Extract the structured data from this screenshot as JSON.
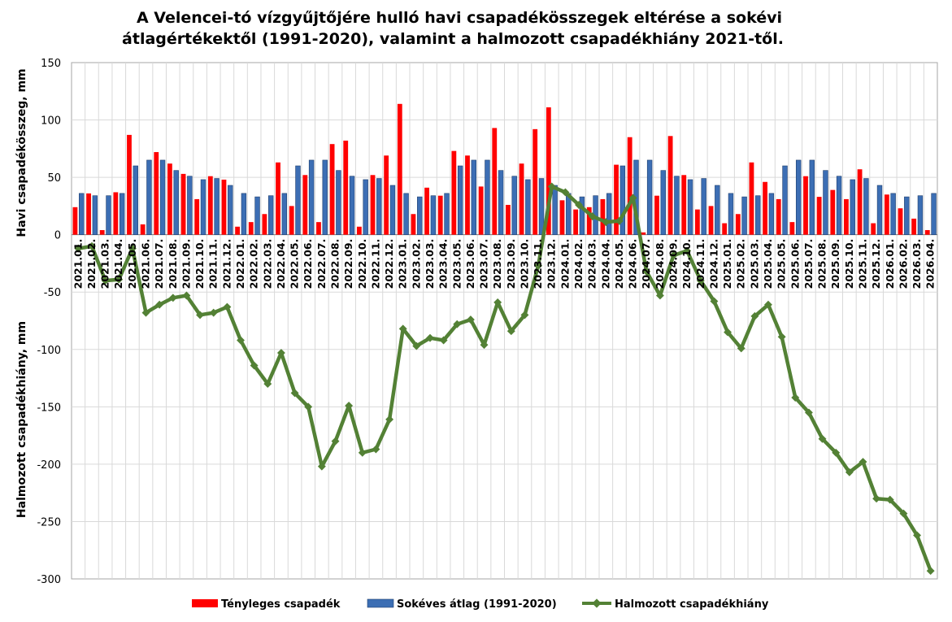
{
  "chart_data": {
    "type": "bar+line",
    "title_line1": "A Velencei-tó vízgyűjtőjére hulló havi csapadékösszegek eltérése a sokévi",
    "title_line2": "átlagértékektől (1991-2020), valamint a halmozott csapadékhiány 2021-től.",
    "ylabel_upper": "Havi csapadékösszeg, mm",
    "ylabel_lower": "Halmozott csapadékhiány, mm",
    "ylim": [
      -300,
      150
    ],
    "yticks": [
      "150",
      "100",
      "50",
      "0",
      "-50",
      "-100",
      "-150",
      "-200",
      "-250",
      "-300"
    ],
    "grid": true,
    "legend_position": "bottom",
    "categories": [
      "2021.01.",
      "2021.02.",
      "2021.03.",
      "2021.04.",
      "2021.05.",
      "2021.06.",
      "2021.07.",
      "2021.08.",
      "2021.09.",
      "2021.10.",
      "2021.11.",
      "2021.12.",
      "2022.01.",
      "2022.02.",
      "2022.03.",
      "2022.04.",
      "2022.05.",
      "2022.06.",
      "2022.07.",
      "2022.08.",
      "2022.09.",
      "2022.10.",
      "2022.11.",
      "2022.12.",
      "2023.01.",
      "2023.02.",
      "2023.03.",
      "2023.04.",
      "2023.05.",
      "2023.06.",
      "2023.07.",
      "2023.08.",
      "2023.09.",
      "2023.10.",
      "2023.11.",
      "2023.12.",
      "2024.01.",
      "2024.02.",
      "2024.03.",
      "2024.04.",
      "2024.05.",
      "2024.06.",
      "2024.07.",
      "2024.08.",
      "2024.09.",
      "2024.10.",
      "2024.11.",
      "2024.12.",
      "2025.01.",
      "2025.02.",
      "2025.03.",
      "2025.04.",
      "2025.05.",
      "2025.06.",
      "2025.07.",
      "2025.08.",
      "2025.09.",
      "2025.10.",
      "2025.11.",
      "2025.12.",
      "2026.01.",
      "2026.02.",
      "2026.03.",
      "2026.04."
    ],
    "series": [
      {
        "name": "Tényleges csapadék",
        "color": "#ff0000",
        "kind": "bar",
        "values": [
          24,
          36,
          4,
          37,
          87,
          9,
          72,
          62,
          53,
          31,
          51,
          48,
          7,
          11,
          18,
          63,
          25,
          52,
          11,
          79,
          82,
          7,
          52,
          69,
          114,
          18,
          41,
          34,
          73,
          69,
          42,
          93,
          26,
          62,
          92,
          111,
          30,
          22,
          24,
          31,
          61,
          85,
          2,
          34,
          86,
          52,
          22,
          25,
          10,
          18,
          63,
          46,
          31,
          11,
          51,
          33,
          39,
          31,
          57,
          10,
          35,
          23,
          14,
          4
        ]
      },
      {
        "name": "Sokéves átlag (1991-2020)",
        "color": "#3c6eb4",
        "kind": "bar",
        "values": [
          36,
          34,
          34,
          36,
          60,
          65,
          65,
          56,
          51,
          48,
          49,
          43,
          36,
          33,
          34,
          36,
          60,
          65,
          65,
          56,
          51,
          48,
          49,
          43,
          36,
          33,
          34,
          36,
          60,
          65,
          65,
          56,
          51,
          48,
          49,
          43,
          36,
          33,
          34,
          36,
          60,
          65,
          65,
          56,
          51,
          48,
          49,
          43,
          36,
          33,
          34,
          36,
          60,
          65,
          65,
          56,
          51,
          48,
          49,
          43,
          36,
          33,
          34,
          36
        ]
      },
      {
        "name": "Halmozott csapadékhiány",
        "color": "#538135",
        "kind": "line",
        "values": [
          -12,
          -10,
          -40,
          -39,
          -12,
          -68,
          -61,
          -55,
          -53,
          -70,
          -68,
          -63,
          -92,
          -114,
          -130,
          -103,
          -138,
          -150,
          -202,
          -180,
          -149,
          -190,
          -187,
          -161,
          -82,
          -97,
          -90,
          -92,
          -78,
          -74,
          -96,
          -59,
          -84,
          -70,
          -27,
          42,
          37,
          26,
          16,
          11,
          12,
          32,
          -32,
          -53,
          -18,
          -14,
          -40,
          -58,
          -85,
          -99,
          -71,
          -61,
          -89,
          -142,
          -155,
          -178,
          -190,
          -207,
          -198,
          -230,
          -231,
          -243,
          -262,
          -293
        ]
      }
    ]
  }
}
